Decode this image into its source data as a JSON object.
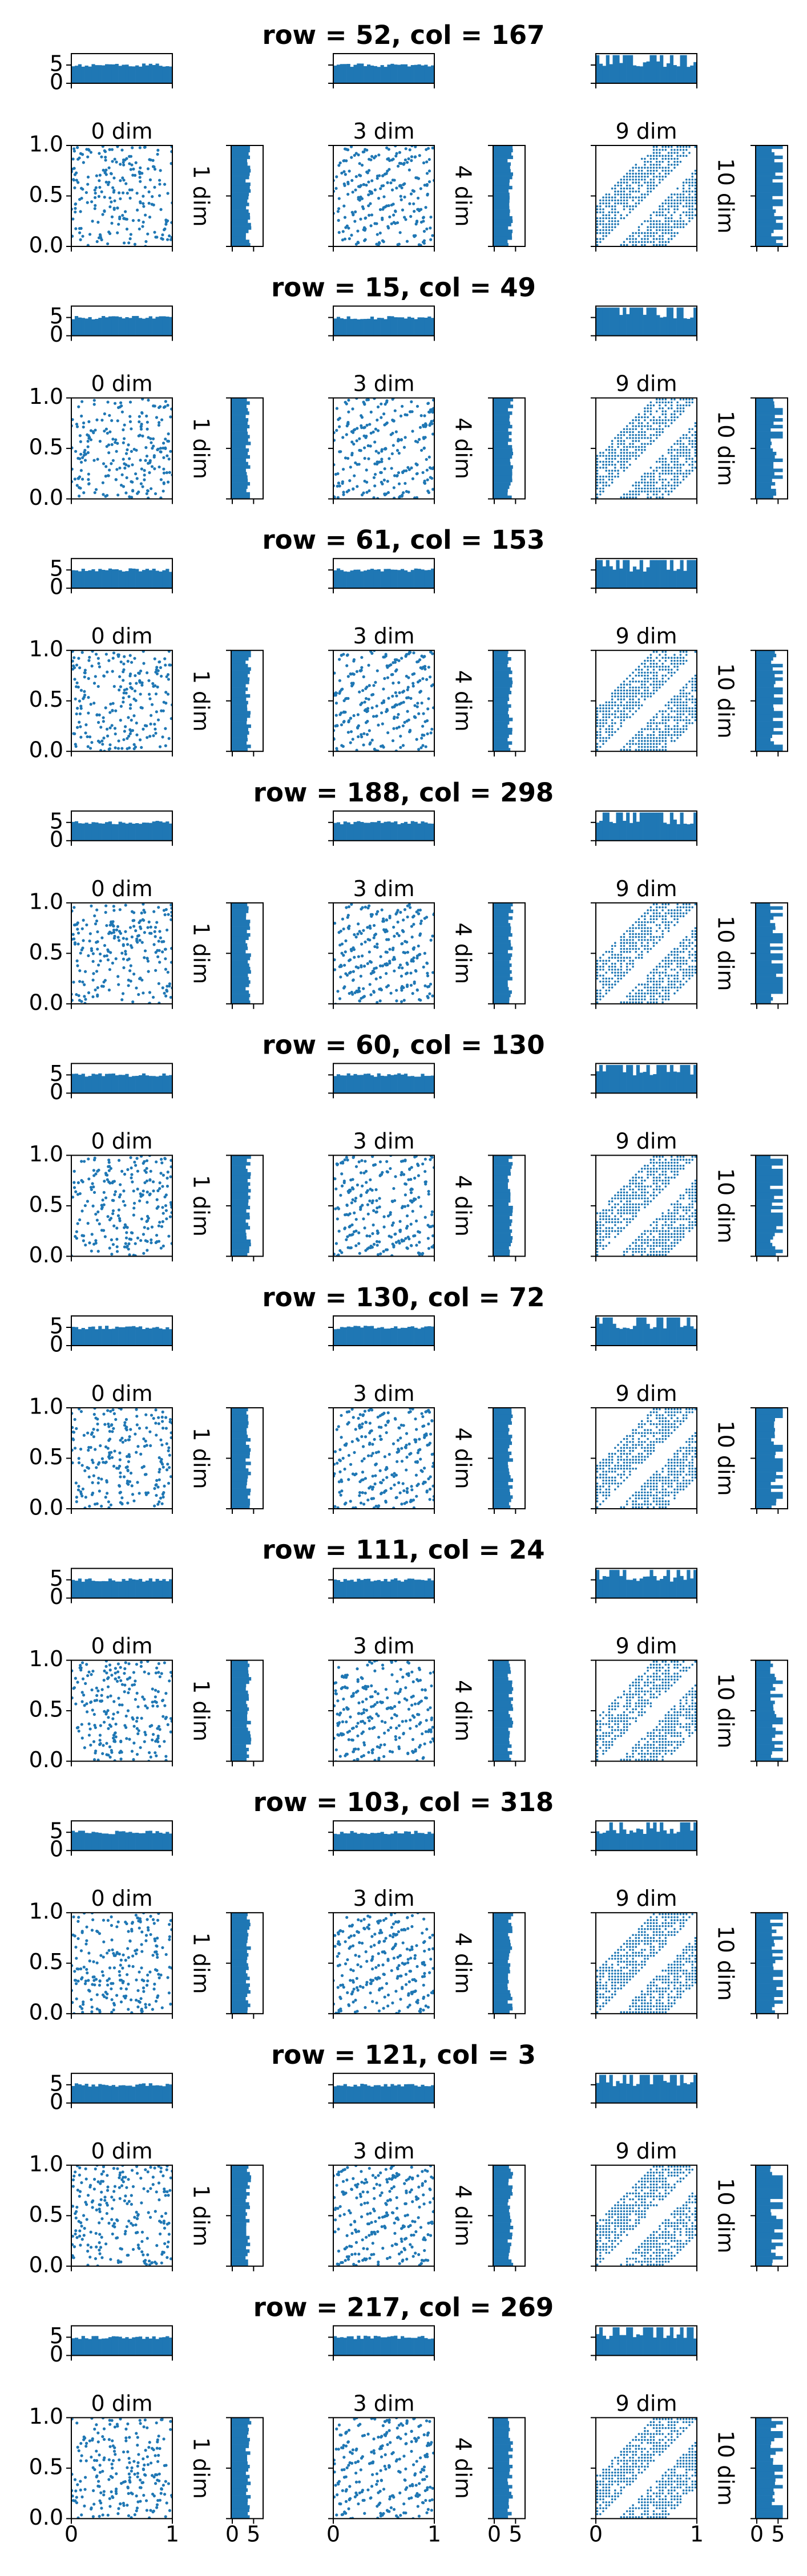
{
  "chart_data": {
    "type": "scatter",
    "title": "",
    "description_of_layout": "",
    "columns": [
      {
        "scatter_title": "0 dim",
        "side_label": "1 dim"
      },
      {
        "scatter_title": "3 dim",
        "side_label": "4 dim"
      },
      {
        "scatter_title": "9 dim",
        "side_label": "10 dim"
      }
    ],
    "scatter_axes": {
      "xlim": [
        0,
        1
      ],
      "ylim": [
        0,
        1
      ],
      "x_ticks": [
        "0",
        "1"
      ],
      "y_ticks": [
        "0.0",
        "0.5",
        "1.0"
      ]
    },
    "hist_axes": {
      "ticks": [
        "0",
        "5"
      ],
      "range": [
        0,
        7
      ]
    },
    "series_color": "#1f77b4",
    "groups": [
      {
        "title": "row = 52, col = 167",
        "row": 52,
        "col": 167
      },
      {
        "title": "row = 15, col = 49",
        "row": 15,
        "col": 49
      },
      {
        "title": "row = 61, col = 153",
        "row": 61,
        "col": 153
      },
      {
        "title": "row = 188, col = 298",
        "row": 188,
        "col": 298
      },
      {
        "title": "row = 60, col = 130",
        "row": 60,
        "col": 130
      },
      {
        "title": "row = 130, col = 72",
        "row": 130,
        "col": 72
      },
      {
        "title": "row = 111, col = 24",
        "row": 111,
        "col": 24
      },
      {
        "title": "row = 103, col = 318",
        "row": 103,
        "col": 318
      },
      {
        "title": "row = 121, col = 3",
        "row": 121,
        "col": 3
      },
      {
        "title": "row = 217, col = 269",
        "row": 217,
        "col": 269
      }
    ]
  }
}
